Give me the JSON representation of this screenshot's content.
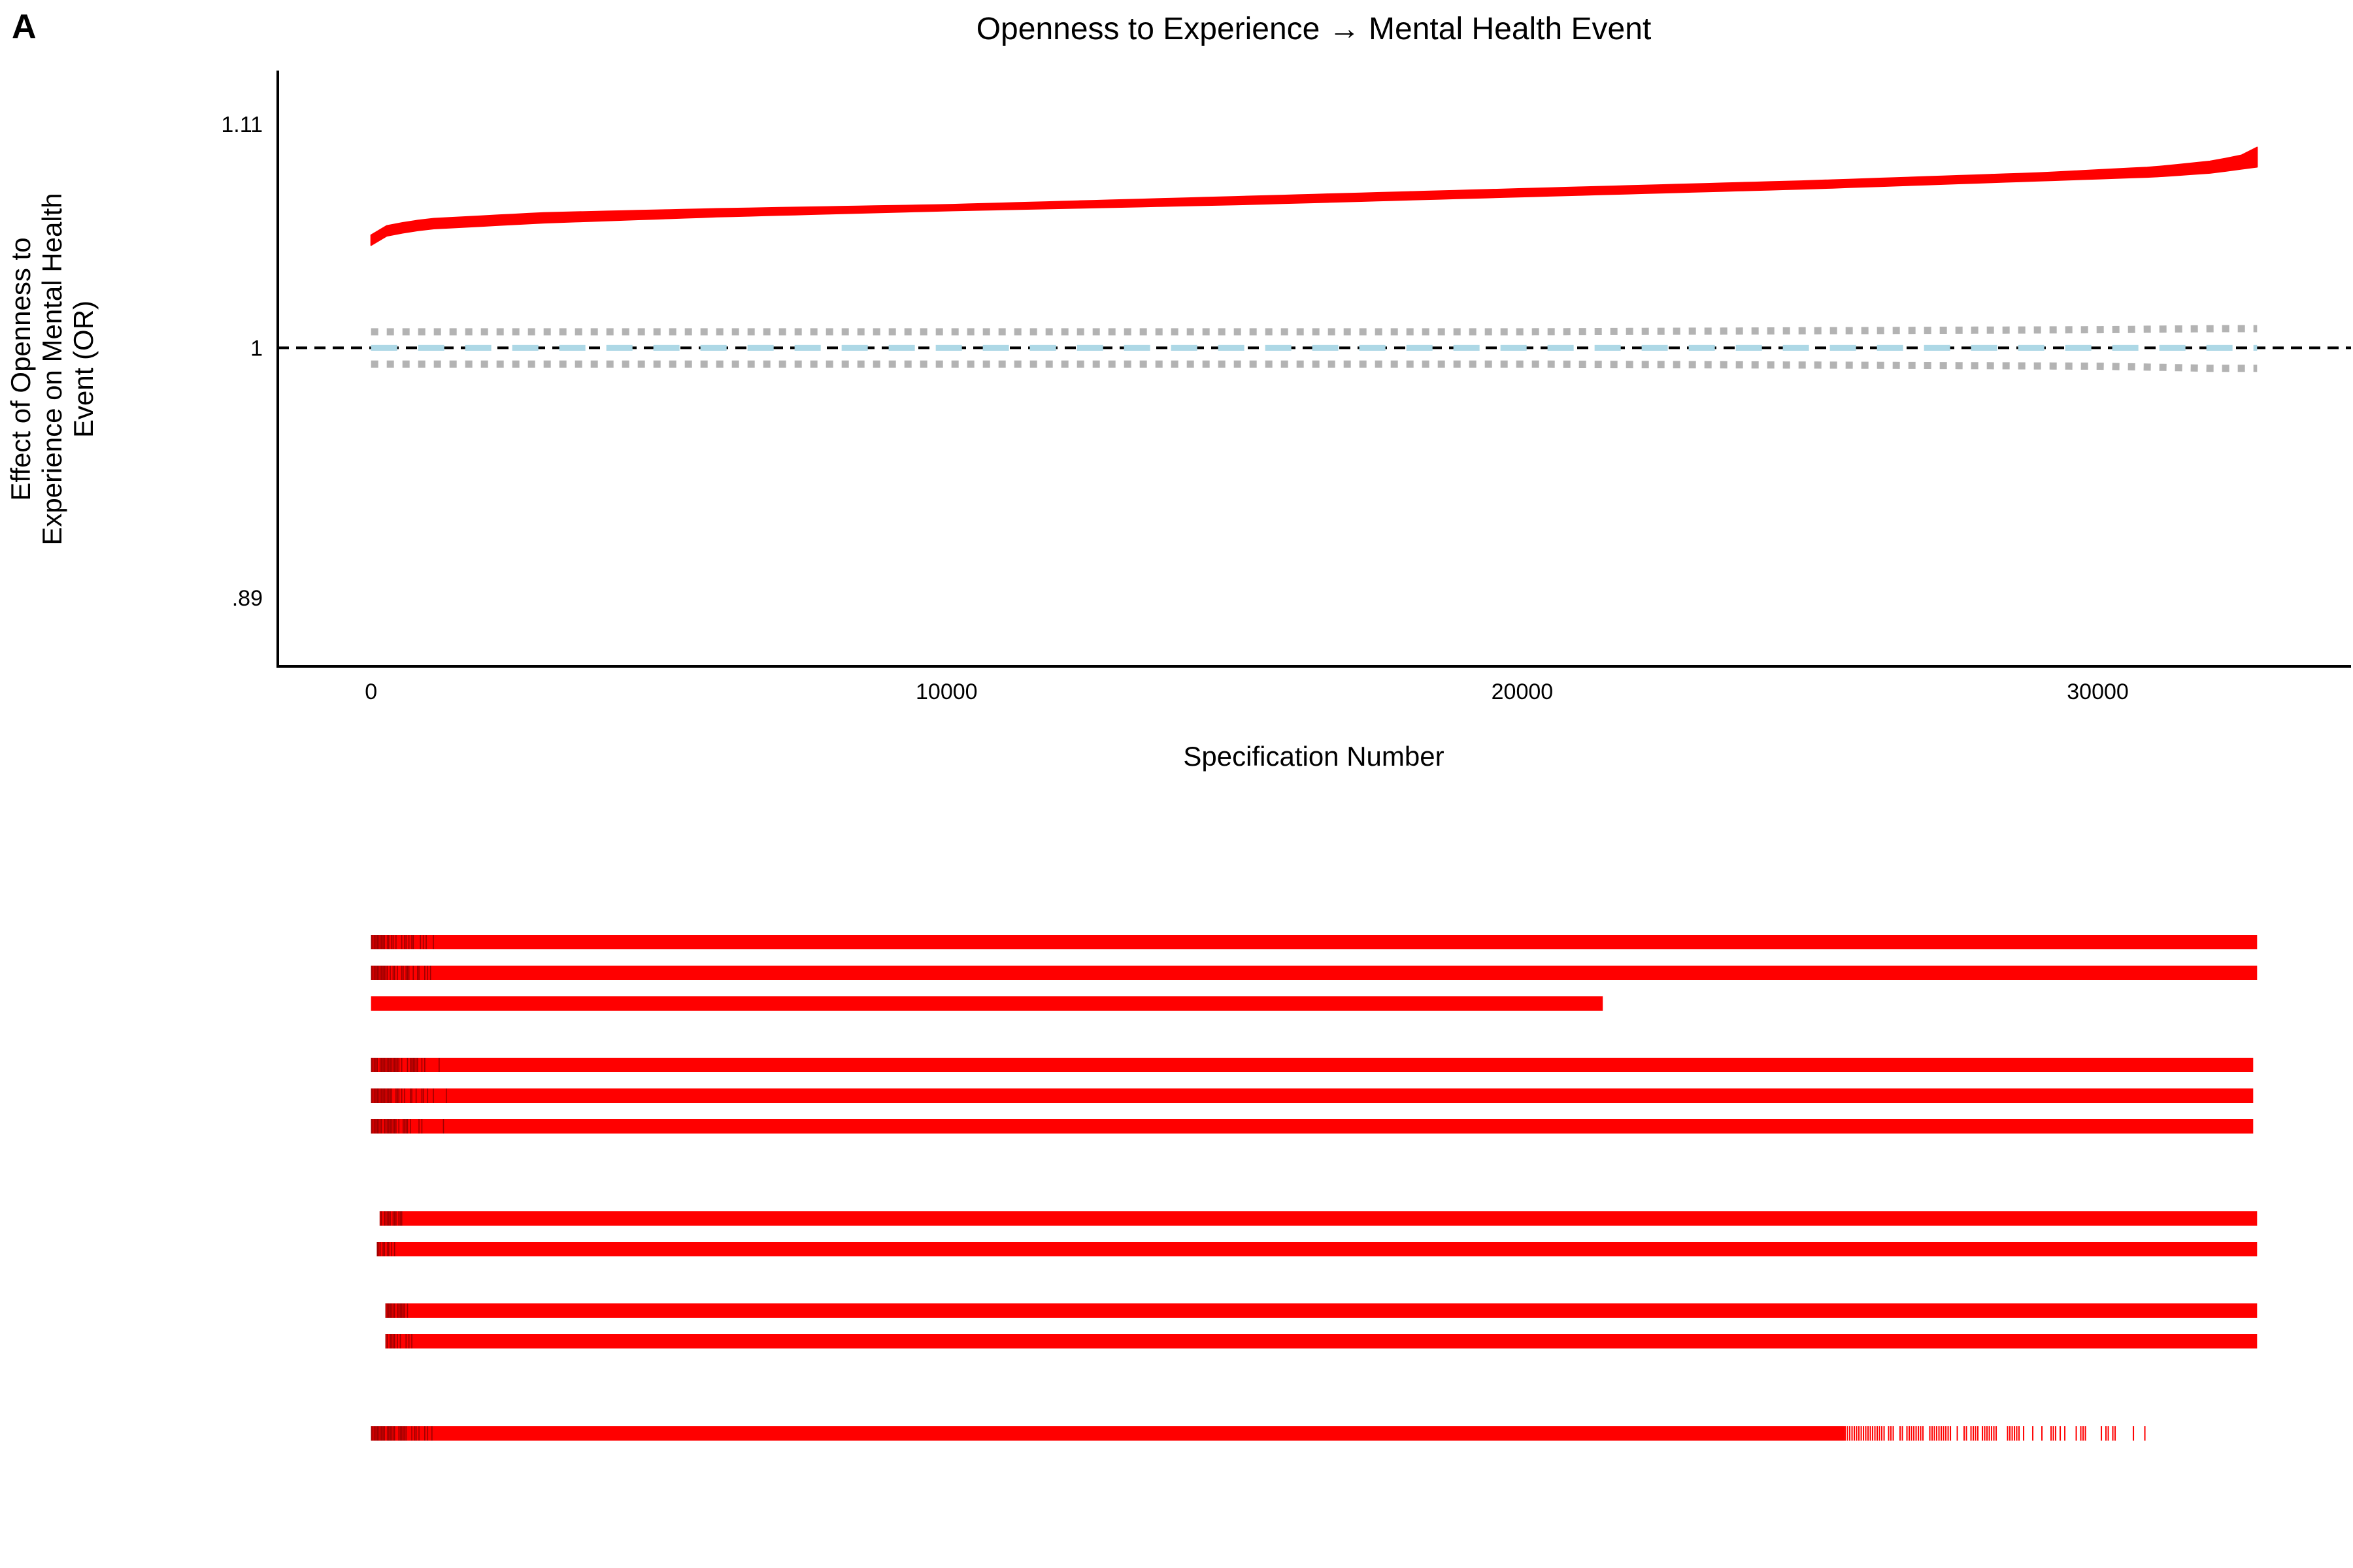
{
  "panel_label": "A",
  "chart_data": [
    {
      "type": "line",
      "title": "Openness to Experience → Mental Health Event",
      "xlabel": "Specification Number",
      "ylabel_lines": [
        "Effect of Openness to",
        "Experience on Mental Health",
        "Event (OR)"
      ],
      "x_ticks": [
        {
          "value": 0,
          "label": "0"
        },
        {
          "value": 10000,
          "label": "10000"
        },
        {
          "value": 20000,
          "label": "20000"
        },
        {
          "value": 30000,
          "label": "30000"
        }
      ],
      "y_ticks": [
        {
          "value": 0.89,
          "label": ".89"
        },
        {
          "value": 1.0,
          "label": "1"
        },
        {
          "value": 1.11,
          "label": "1.11"
        }
      ],
      "xlim": [
        -1620,
        34400
      ],
      "ylim": [
        0.862,
        1.138
      ],
      "y_scale": "log",
      "n_specifications": 32768,
      "grid": false,
      "reference_line": {
        "y": 1.0,
        "style": "dashed",
        "color": "#000000"
      },
      "series": [
        {
          "role": "estimate_band",
          "color": "#ff0000",
          "x": [
            0,
            300,
            1000,
            3000,
            6000,
            10000,
            15000,
            20000,
            25000,
            29000,
            31000,
            32000,
            32500,
            32768
          ],
          "lower": [
            1.049,
            1.054,
            1.057,
            1.06,
            1.063,
            1.066,
            1.069,
            1.073,
            1.077,
            1.081,
            1.083,
            1.085,
            1.087,
            1.088
          ],
          "upper": [
            1.054,
            1.059,
            1.062,
            1.065,
            1.067,
            1.069,
            1.073,
            1.077,
            1.081,
            1.085,
            1.088,
            1.091,
            1.094,
            1.098
          ]
        },
        {
          "role": "null_median",
          "color": "#add8e6",
          "style": "dashed",
          "x": [
            0,
            32768
          ],
          "y": [
            1.0,
            1.0
          ]
        },
        {
          "role": "null_interval",
          "color": "#b3b3b3",
          "style": "dotted",
          "x": [
            0,
            10000,
            20000,
            30000,
            32000,
            32768
          ],
          "upper": [
            1.0075,
            1.0075,
            1.0075,
            1.0085,
            1.009,
            1.009
          ],
          "lower": [
            0.9925,
            0.9925,
            0.9925,
            0.9915,
            0.9905,
            0.9905
          ]
        }
      ]
    },
    {
      "type": "heatmap",
      "color": "#ff0000",
      "dark_color": "#8b0000",
      "x_domain": [
        -1620,
        34400
      ],
      "rows": [
        {
          "start": 0,
          "end": 32768,
          "dense_to": 1300
        },
        {
          "start": 0,
          "end": 32768,
          "dense_to": 1300
        },
        {
          "start": 0,
          "end": 21400,
          "dense_to": 0
        },
        {
          "start": 0,
          "end": 32700,
          "dense_to": 1300
        },
        {
          "start": 0,
          "end": 32700,
          "dense_to": 1300
        },
        {
          "start": 0,
          "end": 32700,
          "dense_to": 1300
        },
        {
          "start": 150,
          "end": 32768,
          "dense_to": 500
        },
        {
          "start": 100,
          "end": 32768,
          "dense_to": 500
        },
        {
          "start": 250,
          "end": 32768,
          "dense_to": 500
        },
        {
          "start": 250,
          "end": 32768,
          "dense_to": 500
        },
        {
          "start": 0,
          "end": 30950,
          "dense_to": 1300,
          "sparse_from": 25600
        }
      ]
    }
  ]
}
